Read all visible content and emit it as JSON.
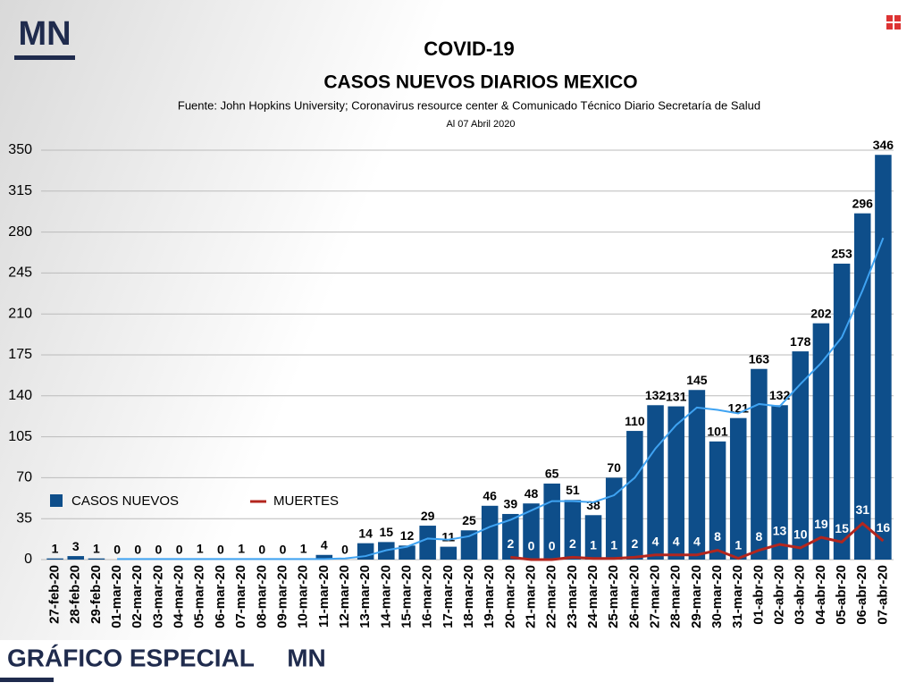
{
  "logo": "MN",
  "footer": "GRÁFICO ESPECIAL",
  "chart_data": {
    "type": "bar",
    "title": "COVID-19",
    "subtitle": "CASOS NUEVOS DIARIOS MEXICO",
    "source": "Fuente: John Hopkins University; Coronavirus resource center & Comunicado Técnico Diario Secretaría de Salud",
    "date_note": "Al 07 Abril 2020",
    "categories": [
      "27-feb-20",
      "28-feb-20",
      "29-feb-20",
      "01-mar-20",
      "02-mar-20",
      "03-mar-20",
      "04-mar-20",
      "05-mar-20",
      "06-mar-20",
      "07-mar-20",
      "08-mar-20",
      "09-mar-20",
      "10-mar-20",
      "11-mar-20",
      "12-mar-20",
      "13-mar-20",
      "14-mar-20",
      "15-mar-20",
      "16-mar-20",
      "17-mar-20",
      "18-mar-20",
      "19-mar-20",
      "20-mar-20",
      "21-mar-20",
      "22-mar-20",
      "23-mar-20",
      "24-mar-20",
      "25-mar-20",
      "26-mar-20",
      "27-mar-20",
      "28-mar-20",
      "29-mar-20",
      "30-mar-20",
      "31-mar-20",
      "01-abr-20",
      "02-abr-20",
      "03-abr-20",
      "04-abr-20",
      "05-abr-20",
      "06-abr-20",
      "07-abr-20"
    ],
    "series": [
      {
        "name": "CASOS NUEVOS",
        "color": "#0e4e8a",
        "values": [
          1,
          3,
          1,
          0,
          0,
          0,
          0,
          1,
          0,
          1,
          0,
          0,
          1,
          4,
          0,
          14,
          15,
          12,
          29,
          11,
          25,
          46,
          39,
          48,
          65,
          51,
          38,
          70,
          110,
          132,
          131,
          145,
          101,
          121,
          163,
          132,
          178,
          202,
          253,
          296,
          346
        ]
      },
      {
        "name": "MUERTES",
        "color": "#b3261e",
        "values": [
          null,
          null,
          null,
          null,
          null,
          null,
          null,
          null,
          null,
          null,
          null,
          null,
          null,
          null,
          null,
          null,
          null,
          null,
          null,
          null,
          null,
          null,
          2,
          0,
          0,
          2,
          1,
          1,
          2,
          4,
          4,
          4,
          8,
          1,
          8,
          13,
          10,
          19,
          15,
          31,
          16
        ]
      },
      {
        "color": "#3fa3f2",
        "values": [
          null,
          null,
          null,
          0.5,
          0.5,
          0.5,
          0.5,
          0.5,
          0.5,
          0.5,
          0.5,
          0.5,
          0.5,
          0.5,
          1,
          3,
          8,
          11,
          18,
          17,
          20,
          28,
          34,
          42,
          50,
          50,
          49,
          55,
          70,
          95,
          115,
          130,
          128,
          125,
          133,
          131,
          150,
          168,
          190,
          230,
          275
        ]
      }
    ],
    "ylim": [
      0,
      350
    ],
    "yticks": [
      0,
      35,
      70,
      105,
      140,
      175,
      210,
      245,
      280,
      315,
      350
    ],
    "grid": true
  }
}
